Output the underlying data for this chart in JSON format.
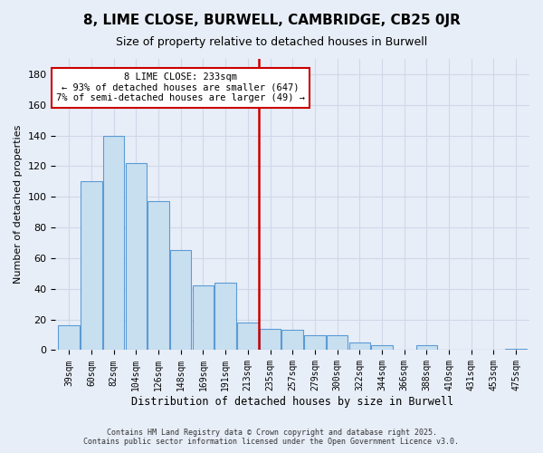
{
  "title": "8, LIME CLOSE, BURWELL, CAMBRIDGE, CB25 0JR",
  "subtitle": "Size of property relative to detached houses in Burwell",
  "xlabel": "Distribution of detached houses by size in Burwell",
  "ylabel": "Number of detached properties",
  "categories": [
    "39sqm",
    "60sqm",
    "82sqm",
    "104sqm",
    "126sqm",
    "148sqm",
    "169sqm",
    "191sqm",
    "213sqm",
    "235sqm",
    "257sqm",
    "279sqm",
    "300sqm",
    "322sqm",
    "344sqm",
    "366sqm",
    "388sqm",
    "410sqm",
    "431sqm",
    "453sqm",
    "475sqm"
  ],
  "values": [
    16,
    110,
    140,
    122,
    97,
    65,
    42,
    44,
    18,
    14,
    13,
    10,
    10,
    5,
    3,
    0,
    3,
    0,
    0,
    0,
    1
  ],
  "bar_color": "#c8dff0",
  "bar_edge_color": "#5b9bd5",
  "vline_color": "#cc0000",
  "annotation_line1": "8 LIME CLOSE: 233sqm",
  "annotation_line2": "← 93% of detached houses are smaller (647)",
  "annotation_line3": "7% of semi-detached houses are larger (49) →",
  "annotation_box_edge_color": "#cc0000",
  "annotation_box_face_color": "#ffffff",
  "ylim": [
    0,
    190
  ],
  "yticks": [
    0,
    20,
    40,
    60,
    80,
    100,
    120,
    140,
    160,
    180
  ],
  "background_color": "#e8eef8",
  "grid_color": "#d0d8e8",
  "title_fontsize": 11,
  "subtitle_fontsize": 9,
  "footnote1": "Contains HM Land Registry data © Crown copyright and database right 2025.",
  "footnote2": "Contains public sector information licensed under the Open Government Licence v3.0."
}
